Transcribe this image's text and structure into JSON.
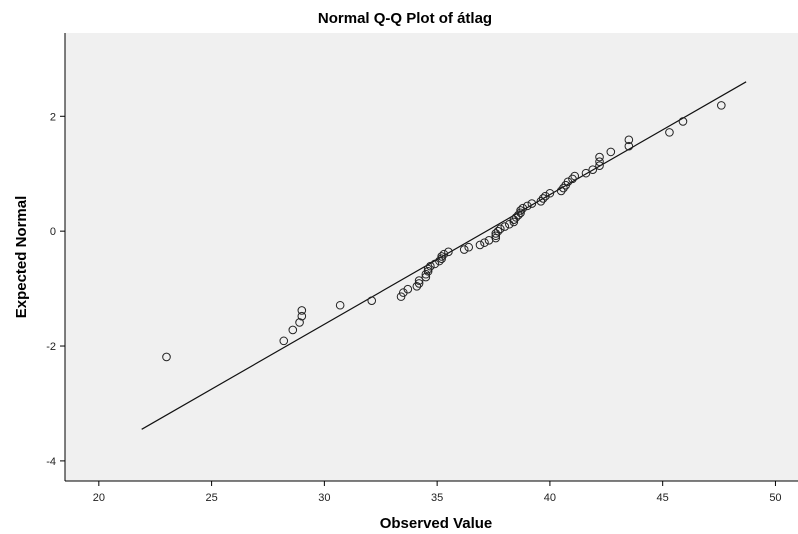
{
  "chart_data": {
    "type": "scatter",
    "title": "Normal Q-Q Plot of átlag",
    "xlabel": "Observed Value",
    "ylabel": "Expected Normal",
    "xlim": [
      18.5,
      51
    ],
    "ylim": [
      -4.35,
      3.45
    ],
    "x_ticks": [
      "20",
      "25",
      "30",
      "35",
      "40",
      "45",
      "50"
    ],
    "y_ticks": [
      "2",
      "0",
      "-2",
      "-4"
    ],
    "grid": false,
    "legend": "none",
    "reference_line": {
      "x": [
        21.9,
        48.7
      ],
      "y": [
        -3.45,
        2.6
      ]
    },
    "points": [
      {
        "x": 23.0,
        "y": -2.19
      },
      {
        "x": 28.2,
        "y": -1.91
      },
      {
        "x": 28.6,
        "y": -1.72
      },
      {
        "x": 28.9,
        "y": -1.59
      },
      {
        "x": 29.0,
        "y": -1.48
      },
      {
        "x": 29.0,
        "y": -1.38
      },
      {
        "x": 30.7,
        "y": -1.29
      },
      {
        "x": 32.1,
        "y": -1.21
      },
      {
        "x": 33.4,
        "y": -1.14
      },
      {
        "x": 33.5,
        "y": -1.07
      },
      {
        "x": 33.7,
        "y": -1.01
      },
      {
        "x": 34.1,
        "y": -0.96
      },
      {
        "x": 34.2,
        "y": -0.91
      },
      {
        "x": 34.2,
        "y": -0.86
      },
      {
        "x": 34.5,
        "y": -0.8
      },
      {
        "x": 34.5,
        "y": -0.75
      },
      {
        "x": 34.6,
        "y": -0.7
      },
      {
        "x": 34.6,
        "y": -0.66
      },
      {
        "x": 34.7,
        "y": -0.61
      },
      {
        "x": 34.9,
        "y": -0.57
      },
      {
        "x": 35.1,
        "y": -0.52
      },
      {
        "x": 35.2,
        "y": -0.48
      },
      {
        "x": 35.2,
        "y": -0.44
      },
      {
        "x": 35.3,
        "y": -0.4
      },
      {
        "x": 35.5,
        "y": -0.36
      },
      {
        "x": 36.2,
        "y": -0.32
      },
      {
        "x": 36.4,
        "y": -0.28
      },
      {
        "x": 36.9,
        "y": -0.24
      },
      {
        "x": 37.1,
        "y": -0.2
      },
      {
        "x": 37.3,
        "y": -0.16
      },
      {
        "x": 37.6,
        "y": -0.12
      },
      {
        "x": 37.6,
        "y": -0.08
      },
      {
        "x": 37.6,
        "y": -0.04
      },
      {
        "x": 37.7,
        "y": 0.0
      },
      {
        "x": 37.8,
        "y": 0.04
      },
      {
        "x": 38.0,
        "y": 0.08
      },
      {
        "x": 38.2,
        "y": 0.12
      },
      {
        "x": 38.4,
        "y": 0.16
      },
      {
        "x": 38.4,
        "y": 0.2
      },
      {
        "x": 38.5,
        "y": 0.24
      },
      {
        "x": 38.6,
        "y": 0.28
      },
      {
        "x": 38.7,
        "y": 0.32
      },
      {
        "x": 38.7,
        "y": 0.36
      },
      {
        "x": 38.8,
        "y": 0.4
      },
      {
        "x": 39.0,
        "y": 0.44
      },
      {
        "x": 39.2,
        "y": 0.48
      },
      {
        "x": 39.6,
        "y": 0.52
      },
      {
        "x": 39.7,
        "y": 0.57
      },
      {
        "x": 39.8,
        "y": 0.61
      },
      {
        "x": 40.0,
        "y": 0.66
      },
      {
        "x": 40.5,
        "y": 0.7
      },
      {
        "x": 40.6,
        "y": 0.75
      },
      {
        "x": 40.7,
        "y": 0.8
      },
      {
        "x": 40.8,
        "y": 0.86
      },
      {
        "x": 41.0,
        "y": 0.91
      },
      {
        "x": 41.1,
        "y": 0.96
      },
      {
        "x": 41.6,
        "y": 1.01
      },
      {
        "x": 41.9,
        "y": 1.07
      },
      {
        "x": 42.2,
        "y": 1.14
      },
      {
        "x": 42.2,
        "y": 1.21
      },
      {
        "x": 42.2,
        "y": 1.29
      },
      {
        "x": 42.7,
        "y": 1.38
      },
      {
        "x": 43.5,
        "y": 1.48
      },
      {
        "x": 43.5,
        "y": 1.59
      },
      {
        "x": 45.3,
        "y": 1.72
      },
      {
        "x": 45.9,
        "y": 1.91
      },
      {
        "x": 47.6,
        "y": 2.19
      }
    ]
  }
}
